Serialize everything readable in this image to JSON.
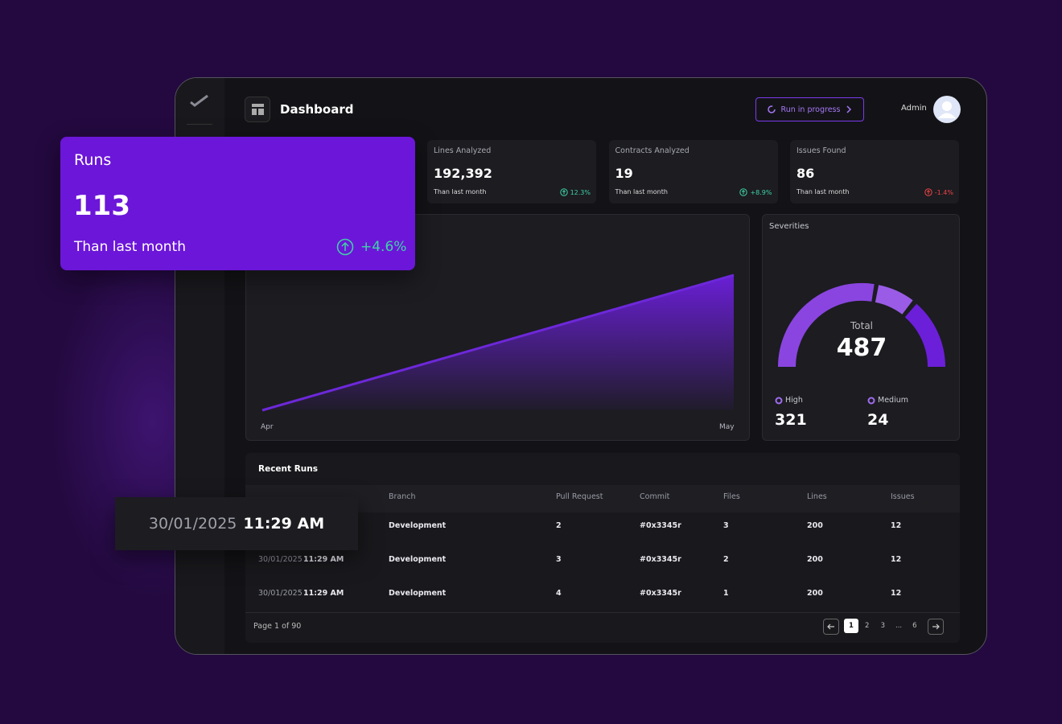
{
  "header": {
    "title": "Dashboard",
    "status_button": "Run in progress",
    "user": "Admin"
  },
  "runs_card": {
    "label": "Runs",
    "value": "113",
    "note": "Than last month",
    "change": "+4.6%"
  },
  "stats": [
    {
      "label": "Lines Analyzed",
      "value": "192,392",
      "note": "Than last month",
      "change": "12.3%"
    },
    {
      "label": "Contracts Analyzed",
      "value": "19",
      "note": "Than last month",
      "change": "+8.9%"
    },
    {
      "label": "Issues Found",
      "value": "86",
      "note": "Than last month",
      "change": "-1.4%"
    }
  ],
  "area_chart": {
    "x_labels": [
      "Apr",
      "May"
    ]
  },
  "severities": {
    "title": "Severities",
    "total_label": "Total",
    "total": "487",
    "items": [
      {
        "name": "High",
        "value": "321"
      },
      {
        "name": "Medium",
        "value": "24"
      }
    ]
  },
  "recent_runs": {
    "title": "Recent Runs",
    "columns": [
      "Branch",
      "Pull Request",
      "Commit",
      "Files",
      "Lines",
      "Issues"
    ],
    "rows": [
      {
        "cells": [
          "Development",
          "2",
          "#0x3345r",
          "3",
          "200",
          "12"
        ]
      },
      {
        "date": "30/01/2025",
        "time": "11:29 AM",
        "cells": [
          "Development",
          "3",
          "#0x3345r",
          "2",
          "200",
          "12"
        ]
      },
      {
        "date": "30/01/2025",
        "time": "11:29 AM",
        "cells": [
          "Development",
          "4",
          "#0x3345r",
          "1",
          "200",
          "12"
        ]
      }
    ]
  },
  "date_overlay": {
    "date": "30/01/2025",
    "time": "11:29 AM"
  },
  "pagination": {
    "info": "Page 1 of 90",
    "pages": [
      "1",
      "2",
      "3",
      "...",
      "6"
    ]
  }
}
